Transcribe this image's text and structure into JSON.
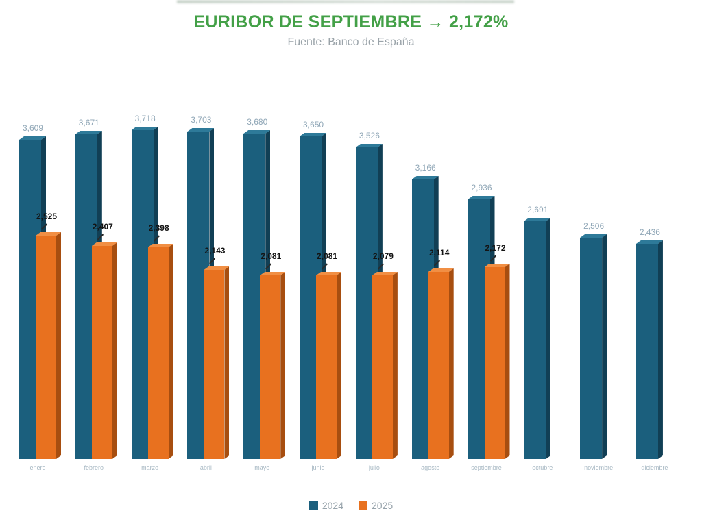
{
  "header": {
    "title": "EURIBOR DE SEPTIEMBRE → 2,172%",
    "subtitle": "Fuente: Banco de España"
  },
  "colors": {
    "title_green": "#43a047",
    "subtitle_gray": "#9aa3a9",
    "series_2024": "#1b5f7d",
    "series_2025": "#e8711f",
    "value_label_2024": "#90a7b7",
    "value_label_2025": "#141414",
    "month_label": "#a7b8c3"
  },
  "chart_data": {
    "type": "bar",
    "title": "EURIBOR DE SEPTIEMBRE → 2,172%",
    "subtitle": "Fuente: Banco de España",
    "source": "Banco de España",
    "categories": [
      "enero",
      "febrero",
      "marzo",
      "abril",
      "mayo",
      "junio",
      "julio",
      "agosto",
      "septiembre",
      "octubre",
      "noviembre",
      "diciembre"
    ],
    "series": [
      {
        "name": "2024",
        "color": "#1b5f7d",
        "values": [
          3.609,
          3.671,
          3.718,
          3.703,
          3.68,
          3.65,
          3.526,
          3.166,
          2.936,
          2.691,
          2.506,
          2.436
        ],
        "labels": [
          "3,609",
          "3,671",
          "3,718",
          "3,703",
          "3,680",
          "3,650",
          "3,526",
          "3,166",
          "2,936",
          "2,691",
          "2,506",
          "2,436"
        ]
      },
      {
        "name": "2025",
        "color": "#e8711f",
        "values": [
          2.525,
          2.407,
          2.398,
          2.143,
          2.081,
          2.081,
          2.079,
          2.114,
          2.172,
          null,
          null,
          null
        ],
        "labels": [
          "2,525",
          "2,407",
          "2,398",
          "2,143",
          "2,081",
          "2,081",
          "2,079",
          "2,114",
          "2,172",
          null,
          null,
          null
        ]
      }
    ],
    "ylim": [
      0,
      4
    ],
    "grid": false,
    "axis_lines": false,
    "legend_position": "bottom",
    "bar_style": "3d-extruded",
    "unit": "%"
  }
}
